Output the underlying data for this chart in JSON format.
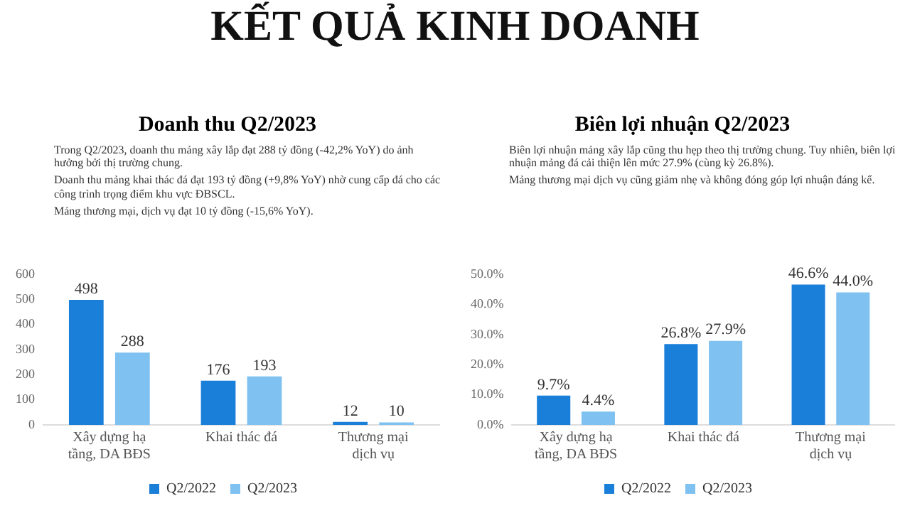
{
  "chart_data": [
    {
      "type": "bar",
      "title": "Doanh thu Q2/2023",
      "annotations": [
        "KẾT QUẢ KINH DOANH",
        "Trong Q2/2023, doanh thu mảng xây lắp đạt 288 tỷ đồng (-42,2% YoY) do ảnh hưởng bởi thị trường chung.",
        "Doanh thu mảng khai thác đá đạt 193 tỷ đồng (+9,8% YoY) nhờ cung cấp đá cho các công trình trọng điểm khu vực ĐBSCL.",
        "Mảng thương mại, dịch vụ đạt 10 tỷ đồng (-15,6% YoY)."
      ],
      "categories": [
        "Xây dựng hạ tầng, DA BĐS",
        "Khai thác đá",
        "Thương mại dịch vụ"
      ],
      "series": [
        {
          "name": "Q2/2022",
          "color": "#1a7fd9",
          "values": [
            498,
            176,
            12
          ]
        },
        {
          "name": "Q2/2023",
          "color": "#7fc1f0",
          "values": [
            288,
            193,
            10
          ]
        }
      ],
      "ylim": [
        0,
        600
      ],
      "yticks": [
        0,
        100,
        200,
        300,
        400,
        500,
        600
      ],
      "grid": false,
      "legend": "bottom",
      "data_labels": true
    },
    {
      "type": "bar",
      "title": "Biên lợi nhuận Q2/2023",
      "annotations": [
        "Biên lợi nhuận mảng xây lắp cũng thu hẹp theo thị trường chung. Tuy nhiên, biên lợi nhuận mảng đá cải thiện lên mức 27.9% (cùng kỳ 26.8%).",
        "Mảng thương mại dịch vụ cũng giảm nhẹ và không đóng góp lợi nhuận đáng kể."
      ],
      "categories": [
        "Xây dựng hạ tầng, DA BĐS",
        "Khai thác đá",
        "Thương mại dịch vụ"
      ],
      "series": [
        {
          "name": "Q2/2022",
          "color": "#1a7fd9",
          "values": [
            9.7,
            26.8,
            46.6
          ],
          "value_labels": [
            "9.7%",
            "26.8%",
            "46.6%"
          ]
        },
        {
          "name": "Q2/2023",
          "color": "#7fc1f0",
          "values": [
            4.4,
            27.9,
            44.0
          ],
          "value_labels": [
            "4.4%",
            "27.9%",
            "44.0%"
          ]
        }
      ],
      "ylim": [
        0,
        50
      ],
      "yticks": [
        {
          "value": 0,
          "label": "0.0%"
        },
        {
          "value": 10,
          "label": "10.0%"
        },
        {
          "value": 20,
          "label": "20.0%"
        },
        {
          "value": 30,
          "label": "30.0%"
        },
        {
          "value": 40,
          "label": "40.0%"
        },
        {
          "value": 50,
          "label": "50.0%"
        }
      ],
      "grid": false,
      "legend": "bottom"
    }
  ]
}
